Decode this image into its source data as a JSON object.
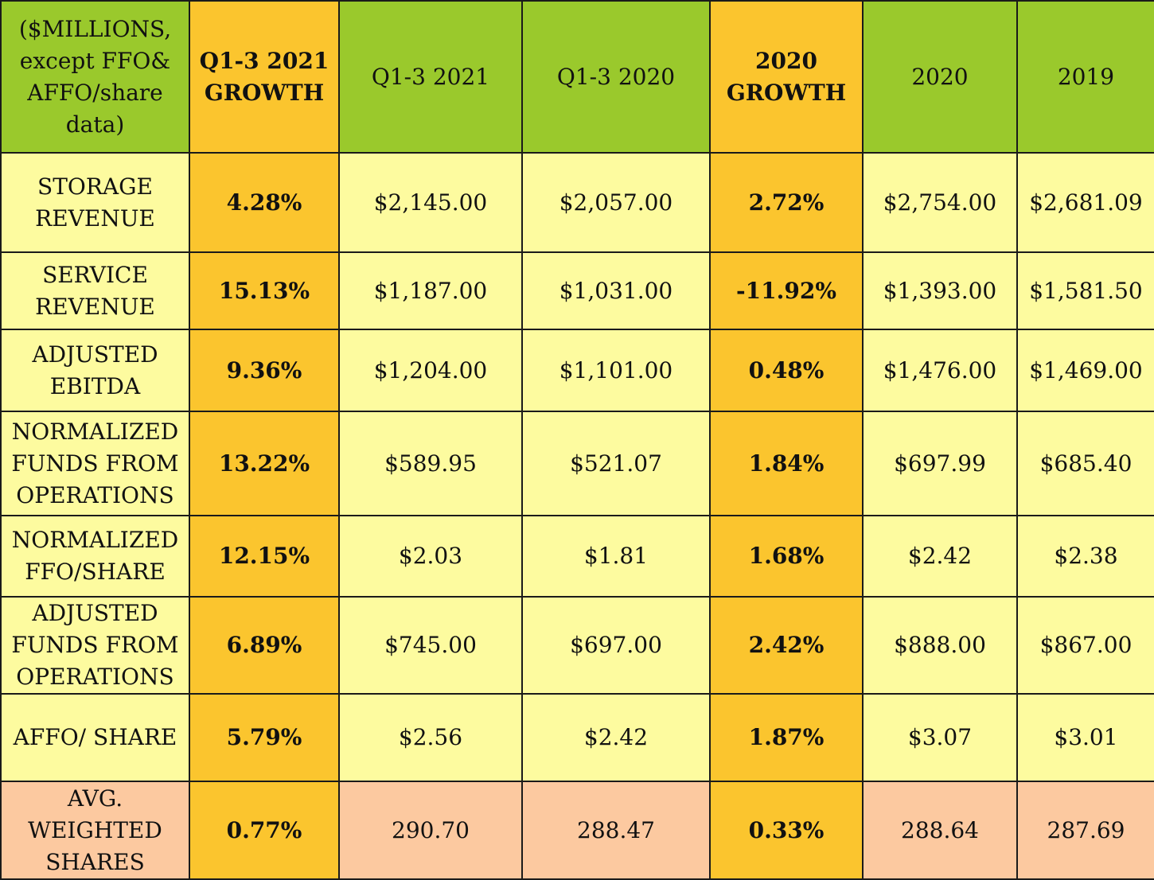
{
  "chart_data": {
    "type": "table",
    "columns": [
      "($MILLIONS, except FFO& AFFO/share data)",
      "Q1-3 2021 GROWTH",
      "Q1-3 2021",
      "Q1-3 2020",
      "2020 GROWTH",
      "2020",
      "2019"
    ],
    "rows": [
      {
        "label": "STORAGE REVENUE",
        "cells": [
          "4.28%",
          "$2,145.00",
          "$2,057.00",
          "2.72%",
          "$2,754.00",
          "$2,681.09"
        ]
      },
      {
        "label": "SERVICE REVENUE",
        "cells": [
          "15.13%",
          "$1,187.00",
          "$1,031.00",
          "-11.92%",
          "$1,393.00",
          "$1,581.50"
        ]
      },
      {
        "label": "ADJUSTED EBITDA",
        "cells": [
          "9.36%",
          "$1,204.00",
          "$1,101.00",
          "0.48%",
          "$1,476.00",
          "$1,469.00"
        ]
      },
      {
        "label": "NORMALIZED FUNDS FROM OPERATIONS",
        "cells": [
          "13.22%",
          "$589.95",
          "$521.07",
          "1.84%",
          "$697.99",
          "$685.40"
        ]
      },
      {
        "label": "NORMALIZED FFO/SHARE",
        "cells": [
          "12.15%",
          "$2.03",
          "$1.81",
          "1.68%",
          "$2.42",
          "$2.38"
        ]
      },
      {
        "label": "ADJUSTED FUNDS FROM OPERATIONS",
        "cells": [
          "6.89%",
          "$745.00",
          "$697.00",
          "2.42%",
          "$888.00",
          "$867.00"
        ]
      },
      {
        "label": "AFFO/ SHARE",
        "cells": [
          "5.79%",
          "$2.56",
          "$2.42",
          "1.87%",
          "$3.07",
          "$3.01"
        ]
      },
      {
        "label": "AVG. WEIGHTED SHARES",
        "cells": [
          "0.77%",
          "290.70",
          "288.47",
          "0.33%",
          "288.64",
          "287.69"
        ]
      }
    ]
  },
  "colors": {
    "header_green": "#9ac92c",
    "growth_orange": "#fbc52e",
    "cell_yellow": "#fdfb9f",
    "shares_peach": "#fcc9a0"
  }
}
